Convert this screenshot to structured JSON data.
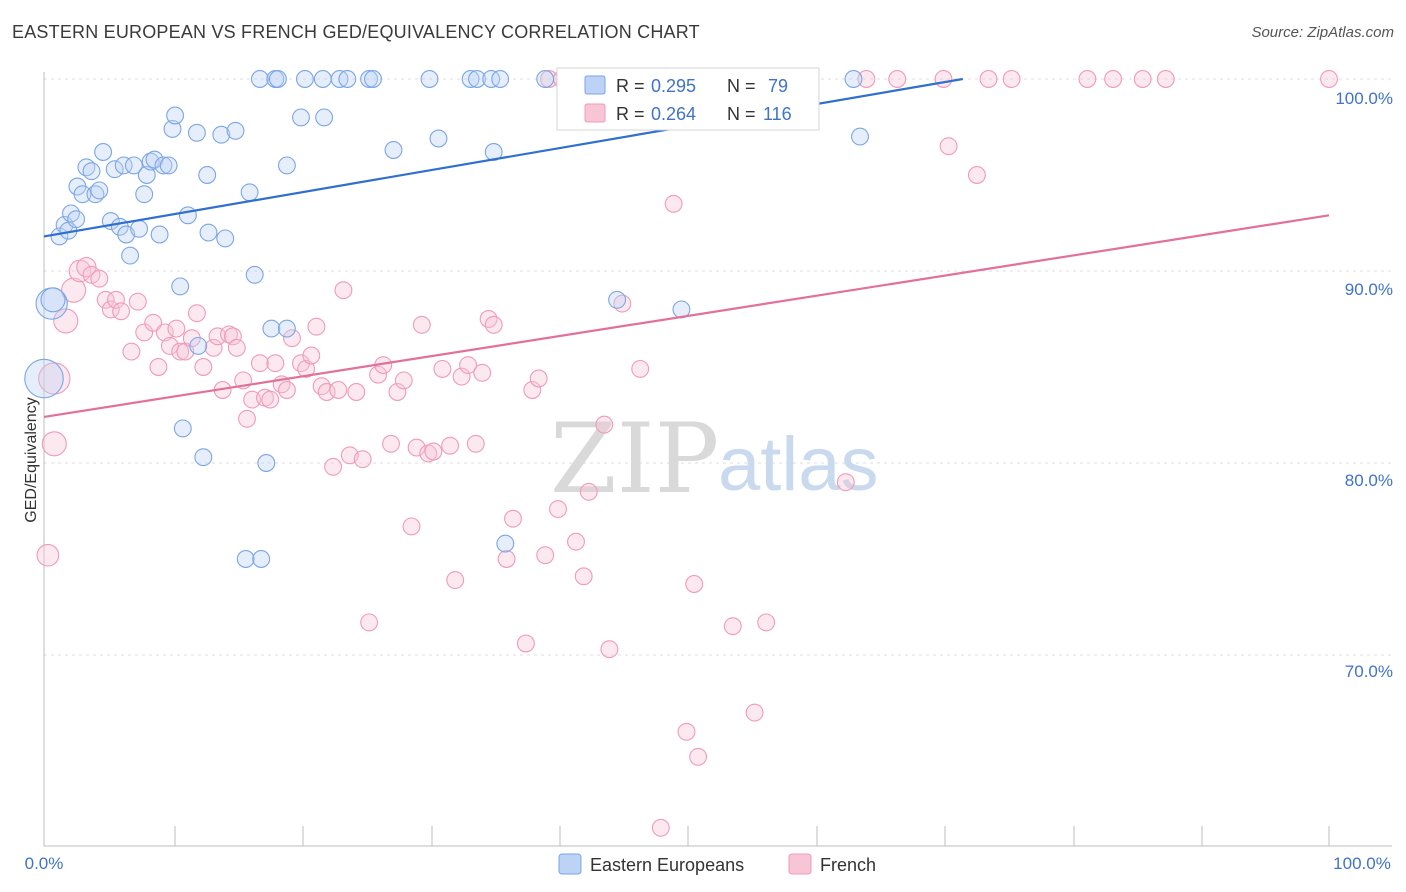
{
  "title": "EASTERN EUROPEAN VS FRENCH GED/EQUIVALENCY CORRELATION CHART",
  "source": "Source: ZipAtlas.com",
  "watermark": {
    "zip": "ZIP",
    "atlas": "atlas"
  },
  "legend_top": [
    {
      "r_label": "R =",
      "r_value": "0.295",
      "n_label": "N =",
      "n_value": "79"
    },
    {
      "r_label": "R =",
      "r_value": "0.264",
      "n_label": "N =",
      "n_value": "116"
    }
  ],
  "legend_bottom": [
    {
      "label": "Eastern Europeans"
    },
    {
      "label": "French"
    }
  ],
  "chart_data": {
    "type": "scatter",
    "title": "EASTERN EUROPEAN VS FRENCH GED/EQUIVALENCY CORRELATION CHART",
    "xlabel": "",
    "ylabel": "GED/Equivalency",
    "xlim": [
      0,
      100
    ],
    "ylim": [
      60,
      100
    ],
    "x_tick_labels": [
      "0.0%",
      "100.0%"
    ],
    "y_tick_labels": [
      "100.0%",
      "90.0%",
      "80.0%",
      "70.0%"
    ],
    "y_tick_values": [
      100,
      90,
      80,
      70
    ],
    "colors": {
      "eastern": "#7aa6e6",
      "french": "#f09ab8",
      "eastern_line": "#2f6fd0",
      "french_line": "#e2709a"
    },
    "series": [
      {
        "name": "Eastern Europeans",
        "r": 0.295,
        "n": 79,
        "trend": {
          "x0": 0,
          "y0": 91.8,
          "x1": 71.5,
          "y1": 100
        },
        "points": [
          [
            0.0,
            84.4,
            1.6
          ],
          [
            0.6,
            88.3,
            1.3
          ],
          [
            0.7,
            88.5,
            1.0
          ],
          [
            1.2,
            91.8,
            0.7
          ],
          [
            1.6,
            92.4,
            0.7
          ],
          [
            1.9,
            92.1,
            0.7
          ],
          [
            2.1,
            93.0,
            0.7
          ],
          [
            2.5,
            92.7,
            0.7
          ],
          [
            2.6,
            94.4,
            0.7
          ],
          [
            3.0,
            94.0,
            0.7
          ],
          [
            3.3,
            95.4,
            0.7
          ],
          [
            3.7,
            95.2,
            0.7
          ],
          [
            4.0,
            94.0,
            0.7
          ],
          [
            4.3,
            94.2,
            0.7
          ],
          [
            4.6,
            96.2,
            0.7
          ],
          [
            5.2,
            92.6,
            0.7
          ],
          [
            5.5,
            95.3,
            0.7
          ],
          [
            5.9,
            92.3,
            0.7
          ],
          [
            6.2,
            95.5,
            0.7
          ],
          [
            6.4,
            91.9,
            0.7
          ],
          [
            6.7,
            90.8,
            0.7
          ],
          [
            7.0,
            95.5,
            0.7
          ],
          [
            7.4,
            92.2,
            0.7
          ],
          [
            7.8,
            94.0,
            0.7
          ],
          [
            8.0,
            95.0,
            0.7
          ],
          [
            8.3,
            95.7,
            0.7
          ],
          [
            8.6,
            95.8,
            0.7
          ],
          [
            9.0,
            91.9,
            0.7
          ],
          [
            9.3,
            95.5,
            0.7
          ],
          [
            9.7,
            95.5,
            0.7
          ],
          [
            10.0,
            97.4,
            0.7
          ],
          [
            10.2,
            98.1,
            0.7
          ],
          [
            10.6,
            89.2,
            0.7
          ],
          [
            10.8,
            81.8,
            0.7
          ],
          [
            11.2,
            92.9,
            0.7
          ],
          [
            11.9,
            97.2,
            0.7
          ],
          [
            12.0,
            86.1,
            0.7
          ],
          [
            12.4,
            80.3,
            0.7
          ],
          [
            12.7,
            95.0,
            0.7
          ],
          [
            12.8,
            92.0,
            0.7
          ],
          [
            13.8,
            97.1,
            0.7
          ],
          [
            14.1,
            91.7,
            0.7
          ],
          [
            14.9,
            97.3,
            0.7
          ],
          [
            15.7,
            75.0,
            0.7
          ],
          [
            16.0,
            94.1,
            0.7
          ],
          [
            16.4,
            89.8,
            0.7
          ],
          [
            16.8,
            100.0,
            0.7
          ],
          [
            16.9,
            75.0,
            0.7
          ],
          [
            17.3,
            80.0,
            0.7
          ],
          [
            17.7,
            87.0,
            0.7
          ],
          [
            18.0,
            100.0,
            0.7
          ],
          [
            18.2,
            100.0,
            0.7
          ],
          [
            18.9,
            95.5,
            0.7
          ],
          [
            18.9,
            87.0,
            0.7
          ],
          [
            20.3,
            100.0,
            0.7
          ],
          [
            20.0,
            98.0,
            0.7
          ],
          [
            21.7,
            100.0,
            0.7
          ],
          [
            21.8,
            98.0,
            0.7
          ],
          [
            23.0,
            100.0,
            0.7
          ],
          [
            23.6,
            100.0,
            0.7
          ],
          [
            25.3,
            100.0,
            0.7
          ],
          [
            25.6,
            100.0,
            0.7
          ],
          [
            27.2,
            96.3,
            0.7
          ],
          [
            30.0,
            100.0,
            0.7
          ],
          [
            30.7,
            96.9,
            0.7
          ],
          [
            33.2,
            100.0,
            0.7
          ],
          [
            33.7,
            100.0,
            0.7
          ],
          [
            34.8,
            100.0,
            0.7
          ],
          [
            35.0,
            96.2,
            0.7
          ],
          [
            35.5,
            100.0,
            0.7
          ],
          [
            35.9,
            75.8,
            0.7
          ],
          [
            39.0,
            100.0,
            0.7
          ],
          [
            41.0,
            100.0,
            0.7
          ],
          [
            44.0,
            100.0,
            0.7
          ],
          [
            44.6,
            88.5,
            0.7
          ],
          [
            49.0,
            100.0,
            0.7
          ],
          [
            49.6,
            88.0,
            0.7
          ],
          [
            63.0,
            100.0,
            0.7
          ],
          [
            63.5,
            97.0,
            0.7
          ]
        ]
      },
      {
        "name": "French",
        "r": 0.264,
        "n": 116,
        "trend": {
          "x0": 0,
          "y0": 82.4,
          "x1": 100,
          "y1": 92.9
        },
        "points": [
          [
            0.3,
            75.2,
            0.9
          ],
          [
            0.8,
            84.4,
            1.3
          ],
          [
            0.8,
            81.0,
            1.0
          ],
          [
            1.7,
            87.4,
            1.0
          ],
          [
            2.3,
            89.0,
            1.0
          ],
          [
            2.8,
            90.0,
            0.9
          ],
          [
            3.3,
            90.2,
            0.8
          ],
          [
            3.7,
            89.8,
            0.7
          ],
          [
            4.3,
            89.6,
            0.7
          ],
          [
            4.8,
            88.5,
            0.7
          ],
          [
            5.2,
            88.0,
            0.7
          ],
          [
            5.6,
            88.5,
            0.7
          ],
          [
            6.0,
            87.9,
            0.7
          ],
          [
            6.8,
            85.8,
            0.7
          ],
          [
            7.3,
            88.4,
            0.7
          ],
          [
            7.8,
            86.8,
            0.7
          ],
          [
            8.5,
            87.3,
            0.7
          ],
          [
            8.9,
            85.0,
            0.7
          ],
          [
            9.4,
            86.8,
            0.7
          ],
          [
            9.8,
            86.1,
            0.7
          ],
          [
            10.3,
            87.0,
            0.7
          ],
          [
            10.6,
            85.8,
            0.7
          ],
          [
            11.0,
            85.8,
            0.7
          ],
          [
            11.5,
            86.5,
            0.7
          ],
          [
            11.9,
            87.8,
            0.7
          ],
          [
            12.4,
            85.0,
            0.7
          ],
          [
            13.2,
            86.0,
            0.7
          ],
          [
            13.5,
            86.6,
            0.7
          ],
          [
            13.9,
            83.8,
            0.7
          ],
          [
            14.4,
            86.7,
            0.7
          ],
          [
            14.7,
            86.6,
            0.7
          ],
          [
            15.0,
            86.0,
            0.7
          ],
          [
            15.5,
            84.3,
            0.7
          ],
          [
            15.8,
            82.3,
            0.7
          ],
          [
            16.2,
            83.3,
            0.7
          ],
          [
            16.8,
            85.2,
            0.7
          ],
          [
            17.2,
            83.4,
            0.7
          ],
          [
            17.6,
            83.3,
            0.7
          ],
          [
            18.0,
            85.2,
            0.7
          ],
          [
            18.5,
            84.1,
            0.7
          ],
          [
            18.9,
            83.8,
            0.7
          ],
          [
            19.3,
            86.5,
            0.7
          ],
          [
            20.0,
            85.2,
            0.7
          ],
          [
            20.4,
            84.9,
            0.7
          ],
          [
            20.8,
            85.6,
            0.7
          ],
          [
            21.2,
            87.1,
            0.7
          ],
          [
            21.6,
            84.0,
            0.7
          ],
          [
            22.0,
            83.7,
            0.7
          ],
          [
            22.5,
            79.8,
            0.7
          ],
          [
            22.9,
            83.8,
            0.7
          ],
          [
            23.3,
            89.0,
            0.7
          ],
          [
            23.8,
            80.4,
            0.7
          ],
          [
            24.3,
            83.7,
            0.7
          ],
          [
            24.8,
            80.2,
            0.7
          ],
          [
            25.3,
            71.7,
            0.7
          ],
          [
            26.0,
            84.6,
            0.7
          ],
          [
            26.4,
            85.1,
            0.7
          ],
          [
            27.0,
            81.0,
            0.7
          ],
          [
            27.5,
            83.7,
            0.7
          ],
          [
            28.0,
            84.3,
            0.7
          ],
          [
            28.6,
            76.7,
            0.7
          ],
          [
            29.0,
            80.8,
            0.7
          ],
          [
            29.4,
            87.2,
            0.7
          ],
          [
            29.9,
            80.5,
            0.7
          ],
          [
            30.3,
            80.6,
            0.7
          ],
          [
            31.0,
            84.9,
            0.7
          ],
          [
            31.6,
            80.9,
            0.7
          ],
          [
            32.0,
            73.9,
            0.7
          ],
          [
            32.5,
            84.5,
            0.7
          ],
          [
            33.0,
            85.1,
            0.7
          ],
          [
            33.6,
            81.0,
            0.7
          ],
          [
            34.1,
            84.7,
            0.7
          ],
          [
            34.6,
            87.5,
            0.7
          ],
          [
            35.0,
            87.2,
            0.7
          ],
          [
            36.0,
            75.0,
            0.7
          ],
          [
            36.5,
            77.1,
            0.7
          ],
          [
            37.5,
            70.6,
            0.7
          ],
          [
            38.0,
            83.8,
            0.7
          ],
          [
            38.5,
            84.4,
            0.7
          ],
          [
            39.0,
            75.2,
            0.7
          ],
          [
            39.3,
            100.0,
            0.7
          ],
          [
            40.0,
            77.6,
            0.7
          ],
          [
            40.3,
            100.0,
            0.7
          ],
          [
            41.0,
            97.9,
            0.7
          ],
          [
            41.4,
            75.9,
            0.7
          ],
          [
            42.0,
            74.1,
            0.7
          ],
          [
            42.4,
            78.5,
            0.7
          ],
          [
            43.0,
            100.0,
            0.7
          ],
          [
            43.6,
            82.0,
            0.7
          ],
          [
            44.0,
            70.3,
            0.7
          ],
          [
            45.0,
            88.3,
            0.7
          ],
          [
            46.5,
            100.0,
            0.7
          ],
          [
            46.4,
            84.9,
            0.7
          ],
          [
            48.0,
            61.0,
            0.7
          ],
          [
            49.0,
            93.5,
            0.7
          ],
          [
            50.0,
            66.0,
            0.7
          ],
          [
            50.6,
            73.7,
            0.7
          ],
          [
            50.9,
            64.7,
            0.7
          ],
          [
            52.0,
            100.0,
            0.7
          ],
          [
            53.6,
            71.5,
            0.7
          ],
          [
            55.3,
            67.0,
            0.7
          ],
          [
            56.2,
            71.7,
            0.7
          ],
          [
            59.6,
            100.0,
            0.7
          ],
          [
            62.4,
            79.0,
            0.7
          ],
          [
            64.0,
            100.0,
            0.7
          ],
          [
            66.4,
            100.0,
            0.7
          ],
          [
            70.0,
            100.0,
            0.7
          ],
          [
            70.4,
            96.5,
            0.7
          ],
          [
            72.6,
            95.0,
            0.7
          ],
          [
            73.5,
            100.0,
            0.7
          ],
          [
            75.3,
            100.0,
            0.7
          ],
          [
            81.2,
            100.0,
            0.7
          ],
          [
            83.2,
            100.0,
            0.7
          ],
          [
            85.5,
            100.0,
            0.7
          ],
          [
            87.3,
            100.0,
            0.7
          ],
          [
            100.0,
            100.0,
            0.7
          ]
        ]
      }
    ]
  }
}
